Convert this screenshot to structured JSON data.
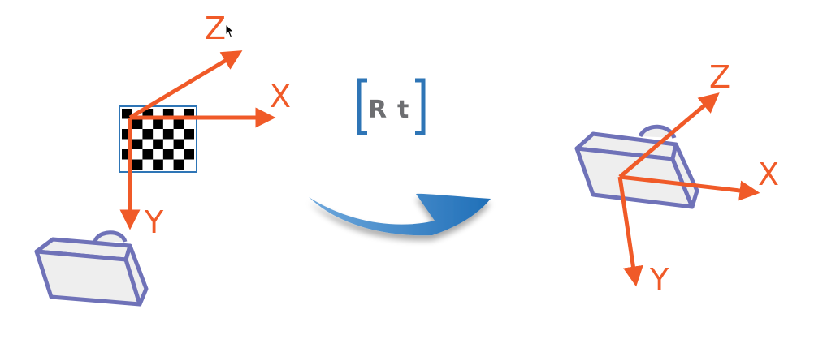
{
  "colors": {
    "axis": "#f05a28",
    "bracket": "#2e75b6",
    "camera_stroke": "#6f72b8",
    "camera_fill": "#eeeeee",
    "board_border": "#2e75b6",
    "arrow": "#1f73bd",
    "matrix_text": "#6d6e71"
  },
  "left_frame": {
    "labels": {
      "z": "Z",
      "x": "X",
      "y": "Y"
    }
  },
  "matrix": {
    "r": "R",
    "t": "t"
  },
  "right_frame": {
    "labels": {
      "z": "Z",
      "x": "X",
      "y": "Y"
    }
  },
  "board": {
    "rows": 6,
    "cols": 7
  }
}
